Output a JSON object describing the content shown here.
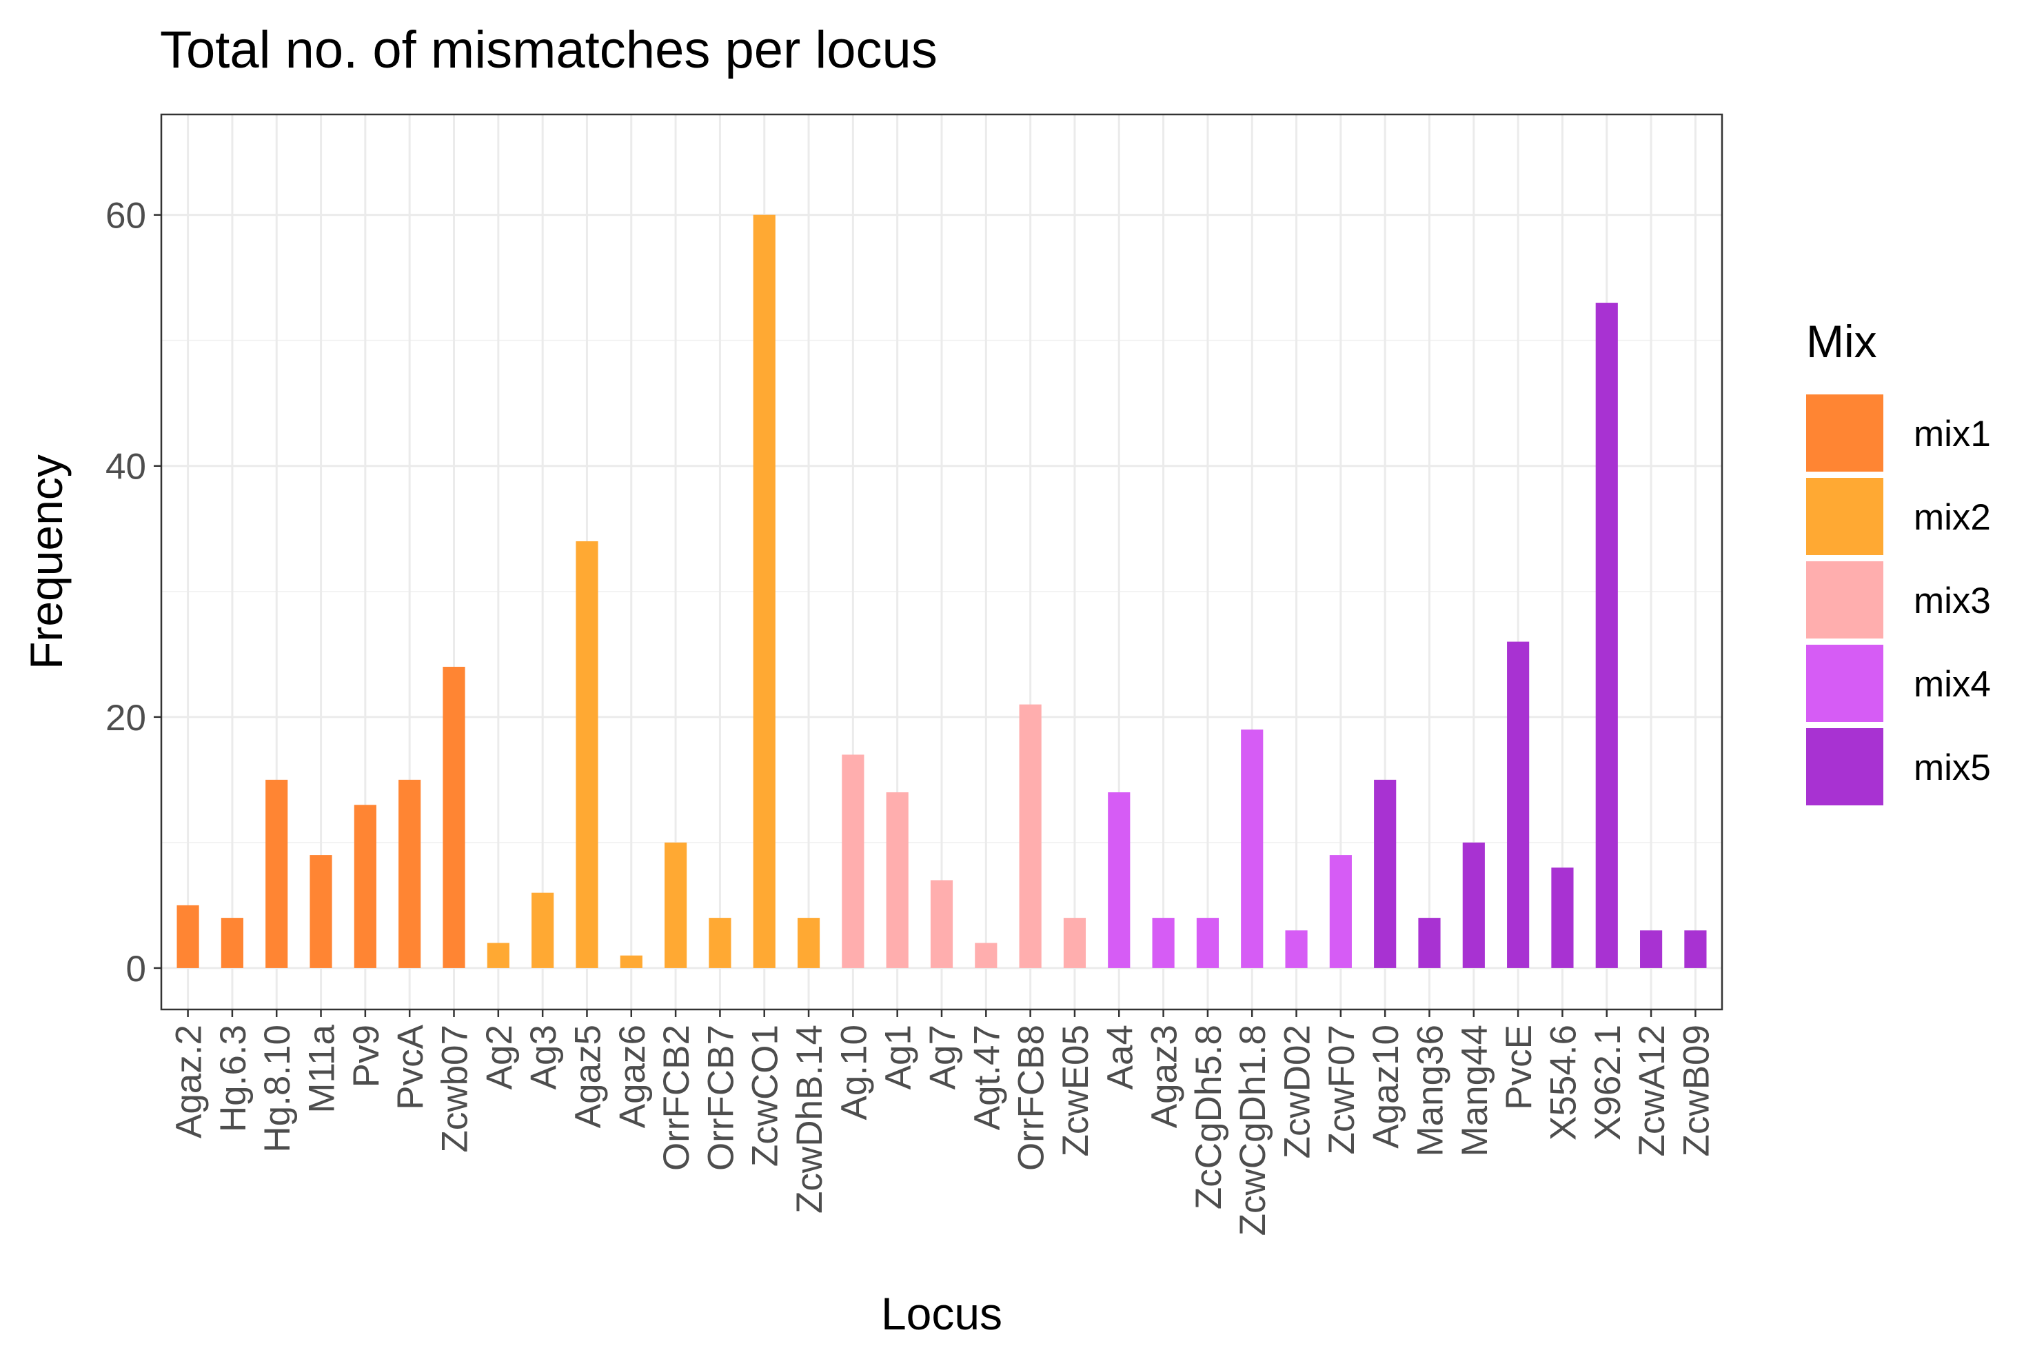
{
  "chart_data": {
    "type": "bar",
    "title": "Total no. of mismatches per locus",
    "xlabel": "Locus",
    "ylabel": "Frequency",
    "ylim": [
      -3.3,
      68
    ],
    "yticks": [
      0,
      20,
      40,
      60
    ],
    "grid": true,
    "legend": {
      "title": "Mix",
      "position": "right",
      "items": [
        {
          "label": "mix1",
          "color": "#ff8533"
        },
        {
          "label": "mix2",
          "color": "#ffa933"
        },
        {
          "label": "mix3",
          "color": "#ffaeae"
        },
        {
          "label": "mix4",
          "color": "#d65cf5"
        },
        {
          "label": "mix5",
          "color": "#a832d2"
        }
      ]
    },
    "categories": [
      "Agaz.2",
      "Hg.6.3",
      "Hg.8.10",
      "M11a",
      "Pv9",
      "PvcA",
      "Zcwb07",
      "Ag2",
      "Ag3",
      "Agaz5",
      "Agaz6",
      "OrrFCB2",
      "OrrFCB7",
      "ZcwCO1",
      "ZcwDhB.14",
      "Ag.10",
      "Ag1",
      "Ag7",
      "Agt.47",
      "OrrFCB8",
      "ZcwE05",
      "Aa4",
      "Agaz3",
      "ZcCgDh5.8",
      "ZcwCgDh1.8",
      "ZcwD02",
      "ZcwF07",
      "Agaz10",
      "Mang36",
      "Mang44",
      "PvcE",
      "X554.6",
      "X962.1",
      "ZcwA12",
      "ZcwB09"
    ],
    "values": [
      5,
      4,
      15,
      9,
      13,
      15,
      24,
      2,
      6,
      34,
      1,
      10,
      4,
      60,
      4,
      17,
      14,
      7,
      2,
      21,
      4,
      14,
      4,
      4,
      19,
      3,
      9,
      15,
      4,
      10,
      26,
      8,
      53,
      3,
      3
    ],
    "groups": [
      "mix1",
      "mix1",
      "mix1",
      "mix1",
      "mix1",
      "mix1",
      "mix1",
      "mix2",
      "mix2",
      "mix2",
      "mix2",
      "mix2",
      "mix2",
      "mix2",
      "mix2",
      "mix3",
      "mix3",
      "mix3",
      "mix3",
      "mix3",
      "mix3",
      "mix4",
      "mix4",
      "mix4",
      "mix4",
      "mix4",
      "mix4",
      "mix5",
      "mix5",
      "mix5",
      "mix5",
      "mix5",
      "mix5",
      "mix5",
      "mix5"
    ]
  }
}
